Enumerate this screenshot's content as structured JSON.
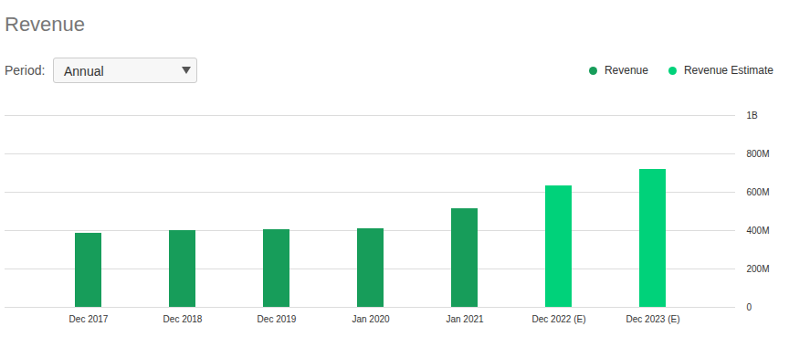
{
  "chart_data": {
    "type": "bar",
    "title": "Revenue",
    "controls": {
      "label": "Period:",
      "value": "Annual"
    },
    "categories": [
      "Dec 2017",
      "Dec 2018",
      "Dec 2019",
      "Jan 2020",
      "Jan 2021",
      "Dec 2022 (E)",
      "Dec 2023 (E)"
    ],
    "series": [
      {
        "name": "Revenue",
        "color": "#179d5a",
        "values": [
          386000000,
          400000000,
          405000000,
          410000000,
          514000000,
          null,
          null
        ]
      },
      {
        "name": "Revenue Estimate",
        "color": "#00d27a",
        "values": [
          null,
          null,
          null,
          null,
          null,
          633000000,
          719000000
        ]
      }
    ],
    "ylim": [
      0,
      1000000000
    ],
    "yticks": [
      0,
      {
        "value": 200000000,
        "label": "200M"
      },
      {
        "value": 400000000,
        "label": "400M"
      },
      {
        "value": 600000000,
        "label": "600M"
      },
      {
        "value": 800000000,
        "label": "800M"
      },
      {
        "value": 1000000000,
        "label": "1B"
      }
    ],
    "grid": true,
    "legend": "top-right"
  }
}
